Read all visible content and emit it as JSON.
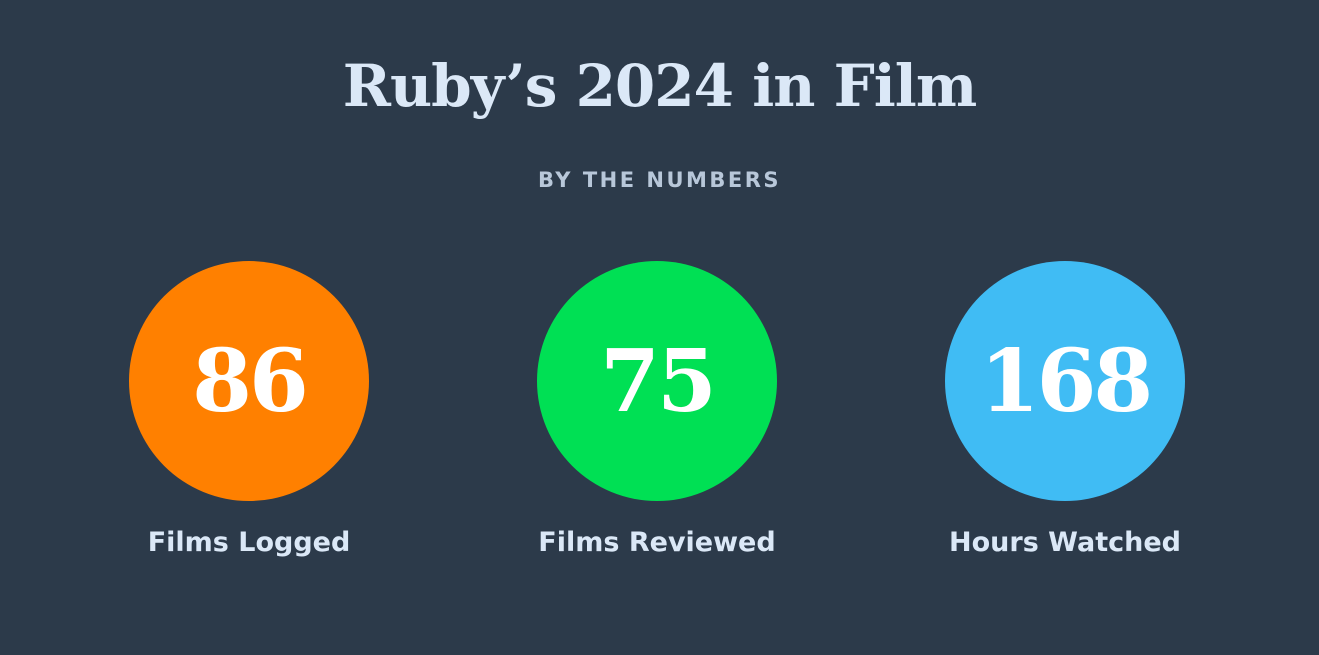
{
  "header": {
    "title": "Ruby’s 2024 in Film",
    "subtitle": "BY THE NUMBERS"
  },
  "stats": [
    {
      "value": 86,
      "label": "Films Logged",
      "color": "#ff8000"
    },
    {
      "value": 75,
      "label": "Films Reviewed",
      "color": "#00e054"
    },
    {
      "value": 168,
      "label": "Hours Watched",
      "color": "#40bcf4"
    }
  ]
}
